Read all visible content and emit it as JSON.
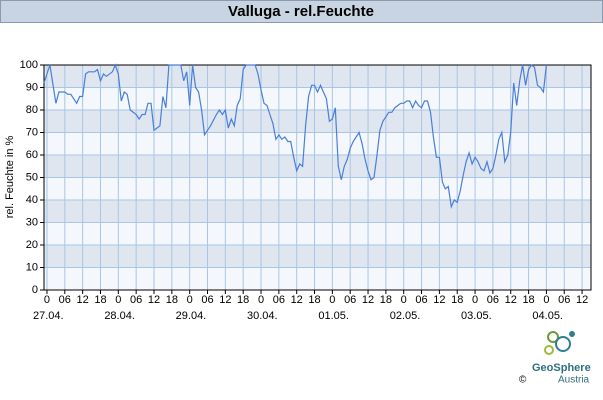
{
  "chart_data": {
    "type": "line",
    "title": "Valluga - rel.Feuchte",
    "ylabel": "rel. Feuchte in %",
    "xlim": [
      -1,
      183
    ],
    "ylim": [
      0,
      100
    ],
    "yticks": [
      0,
      10,
      20,
      30,
      40,
      50,
      60,
      70,
      80,
      90,
      100
    ],
    "xticks": [
      {
        "value": 0,
        "label": "0"
      },
      {
        "value": 6,
        "label": "06"
      },
      {
        "value": 12,
        "label": "12"
      },
      {
        "value": 18,
        "label": "18"
      },
      {
        "value": 24,
        "label": "0"
      },
      {
        "value": 30,
        "label": "06"
      },
      {
        "value": 36,
        "label": "12"
      },
      {
        "value": 42,
        "label": "18"
      },
      {
        "value": 48,
        "label": "0"
      },
      {
        "value": 54,
        "label": "06"
      },
      {
        "value": 60,
        "label": "12"
      },
      {
        "value": 66,
        "label": "18"
      },
      {
        "value": 72,
        "label": "0"
      },
      {
        "value": 78,
        "label": "06"
      },
      {
        "value": 84,
        "label": "12"
      },
      {
        "value": 90,
        "label": "18"
      },
      {
        "value": 96,
        "label": "0"
      },
      {
        "value": 102,
        "label": "06"
      },
      {
        "value": 108,
        "label": "12"
      },
      {
        "value": 114,
        "label": "18"
      },
      {
        "value": 120,
        "label": "0"
      },
      {
        "value": 126,
        "label": "06"
      },
      {
        "value": 132,
        "label": "12"
      },
      {
        "value": 138,
        "label": "18"
      },
      {
        "value": 144,
        "label": "0"
      },
      {
        "value": 150,
        "label": "06"
      },
      {
        "value": 156,
        "label": "12"
      },
      {
        "value": 162,
        "label": "18"
      },
      {
        "value": 168,
        "label": "0"
      },
      {
        "value": 174,
        "label": "06"
      },
      {
        "value": 180,
        "label": "12"
      }
    ],
    "date_labels": [
      {
        "value": 0,
        "label": "27.04."
      },
      {
        "value": 24,
        "label": "28.04."
      },
      {
        "value": 48,
        "label": "29.04."
      },
      {
        "value": 72,
        "label": "30.04."
      },
      {
        "value": 96,
        "label": "01.05."
      },
      {
        "value": 120,
        "label": "02.05."
      },
      {
        "value": 144,
        "label": "03.05."
      },
      {
        "value": 168,
        "label": "04.05."
      }
    ],
    "grid": true,
    "x": [
      -1,
      1,
      3,
      4,
      6,
      7,
      8,
      10,
      11,
      12,
      13,
      14,
      16,
      17,
      18,
      19,
      20,
      22,
      23,
      24,
      25,
      26,
      27,
      28,
      30,
      31,
      32,
      33,
      34,
      35,
      36,
      37,
      38,
      39,
      40,
      41,
      42,
      43,
      45,
      46,
      47,
      48,
      49,
      50,
      51,
      52,
      53,
      54,
      55,
      57,
      58,
      59,
      60,
      61,
      62,
      63,
      64,
      65,
      66,
      67,
      68,
      70,
      71,
      72,
      73,
      74,
      75,
      76,
      77,
      78,
      79,
      80,
      81,
      82,
      83,
      84,
      85,
      86,
      87,
      88,
      89,
      90,
      91,
      92,
      93,
      94,
      95,
      96,
      97,
      98,
      99,
      100,
      101,
      102,
      103,
      104,
      105,
      106,
      107,
      108,
      109,
      110,
      111,
      112,
      113,
      114,
      115,
      116,
      117,
      118,
      119,
      120,
      121,
      122,
      123,
      124,
      125,
      126,
      127,
      128,
      129,
      130,
      131,
      132,
      133,
      134,
      135,
      136,
      137,
      138,
      139,
      140,
      141,
      142,
      143,
      144,
      145,
      146,
      147,
      148,
      149,
      150,
      151,
      152,
      153,
      154,
      155,
      156,
      157,
      158,
      159,
      160,
      161,
      162,
      163,
      164,
      165,
      166,
      167,
      168
    ],
    "series": [
      {
        "color": "#4a7fd8",
        "values": [
          92,
          100,
          83,
          88,
          88,
          87,
          87,
          83,
          86,
          86,
          96,
          97,
          97,
          98,
          93,
          96,
          95,
          97,
          100,
          96,
          84,
          88,
          87,
          80,
          78,
          76,
          78,
          78,
          83,
          83,
          71,
          72,
          73,
          86,
          81,
          100,
          100,
          100,
          100,
          93,
          97,
          82,
          100,
          90,
          88,
          80,
          69,
          71,
          73,
          78,
          80,
          78,
          80,
          72,
          76,
          73,
          82,
          85,
          98,
          100,
          100,
          100,
          96,
          89,
          83,
          82,
          78,
          74,
          67,
          69,
          67,
          68,
          66,
          66,
          59,
          53,
          56,
          55,
          73,
          86,
          91,
          91,
          88,
          91,
          88,
          85,
          75,
          76,
          81,
          55,
          49,
          55,
          58,
          63,
          66,
          68,
          70,
          65,
          58,
          53,
          49,
          50,
          60,
          71,
          75,
          77,
          79,
          79,
          81,
          82,
          83,
          83,
          84,
          84,
          81,
          84,
          82,
          81,
          84,
          84,
          79,
          68,
          59,
          59,
          48,
          45,
          46,
          37,
          40,
          39,
          44,
          51,
          57,
          61,
          56,
          59,
          57,
          54,
          53,
          57,
          52,
          54,
          60,
          67,
          70,
          57,
          60,
          70,
          92,
          82,
          93,
          100,
          91,
          98,
          100,
          99,
          91,
          90,
          88,
          100
        ]
      }
    ]
  },
  "footer": {
    "copyright": "©",
    "brand": "GeoSphere",
    "country": "Austria"
  }
}
